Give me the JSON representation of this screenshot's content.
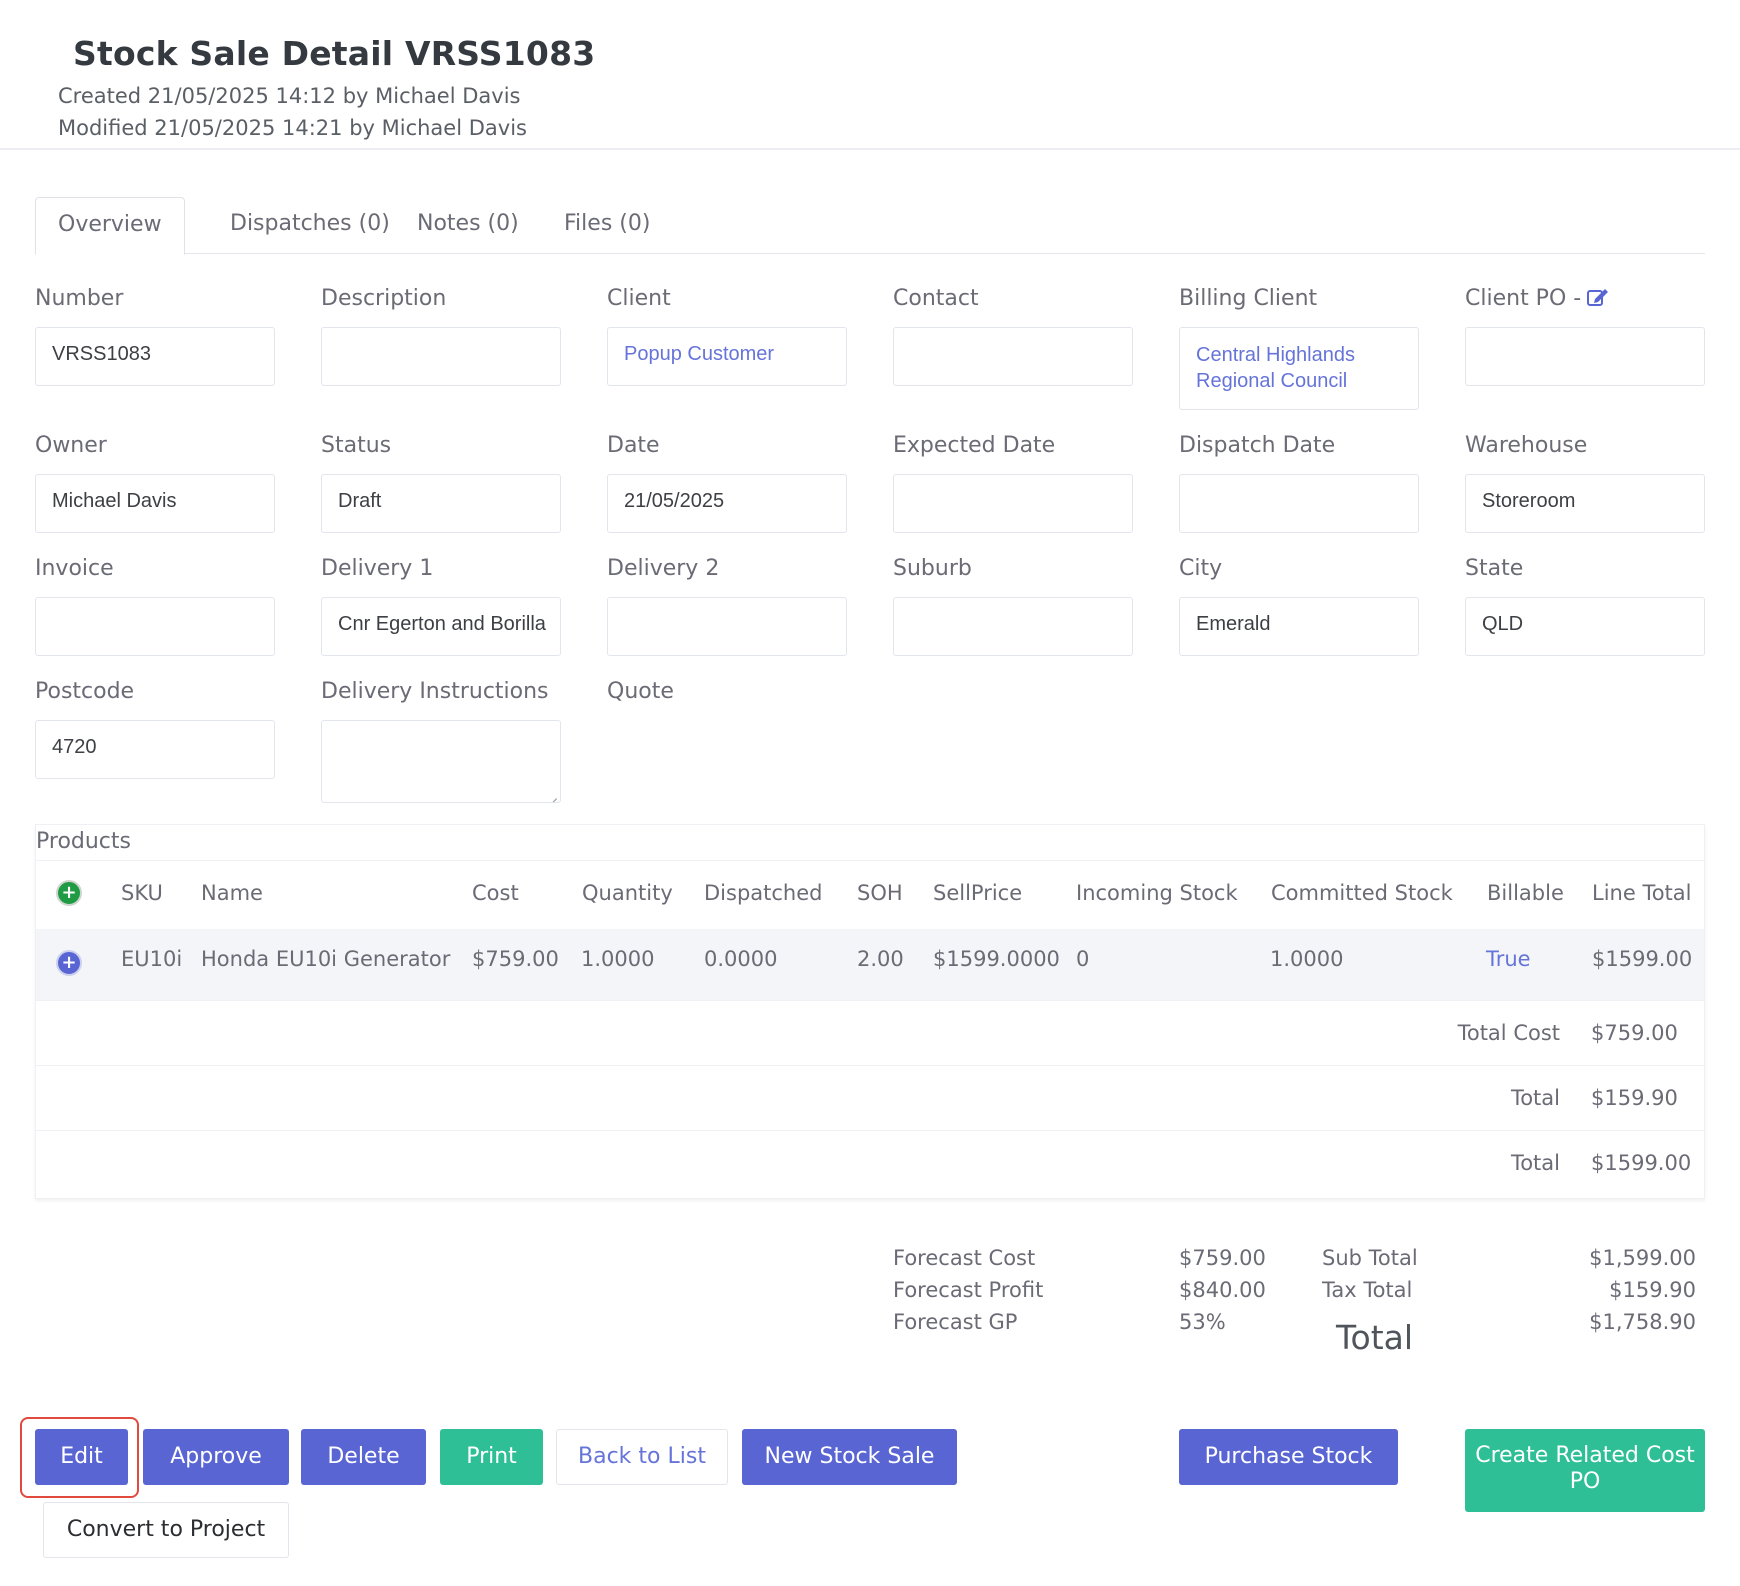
{
  "header": {
    "title": "Stock Sale Detail VRSS1083",
    "created": "Created 21/05/2025 14:12 by Michael Davis",
    "modified": "Modified 21/05/2025 14:21 by Michael Davis"
  },
  "tabs": [
    {
      "label": "Overview",
      "active": true
    },
    {
      "label": "Dispatches (0)",
      "active": false
    },
    {
      "label": "Notes (0)",
      "active": false
    },
    {
      "label": "Files (0)",
      "active": false
    }
  ],
  "fields": {
    "number": {
      "label": "Number",
      "value": "VRSS1083"
    },
    "description": {
      "label": "Description",
      "value": ""
    },
    "client": {
      "label": "Client",
      "value": "Popup Customer"
    },
    "contact": {
      "label": "Contact",
      "value": ""
    },
    "billing_client": {
      "label": "Billing Client",
      "value": "Central Highlands Regional Council"
    },
    "client_po": {
      "label": "Client PO -",
      "value": "",
      "icon": "edit-icon"
    },
    "owner": {
      "label": "Owner",
      "value": "Michael Davis"
    },
    "status": {
      "label": "Status",
      "value": "Draft"
    },
    "date": {
      "label": "Date",
      "value": "21/05/2025"
    },
    "expected_date": {
      "label": "Expected Date",
      "value": ""
    },
    "dispatch_date": {
      "label": "Dispatch Date",
      "value": ""
    },
    "warehouse": {
      "label": "Warehouse",
      "value": "Storeroom"
    },
    "invoice": {
      "label": "Invoice",
      "value": ""
    },
    "delivery1": {
      "label": "Delivery 1",
      "value": "Cnr Egerton and Borilla"
    },
    "delivery2": {
      "label": "Delivery 2",
      "value": ""
    },
    "suburb": {
      "label": "Suburb",
      "value": ""
    },
    "city": {
      "label": "City",
      "value": "Emerald"
    },
    "state": {
      "label": "State",
      "value": "QLD"
    },
    "postcode": {
      "label": "Postcode",
      "value": "4720"
    },
    "delivery_instructions": {
      "label": "Delivery Instructions",
      "value": ""
    },
    "quote": {
      "label": "Quote",
      "value": ""
    }
  },
  "products": {
    "title": "Products",
    "columns": [
      "SKU",
      "Name",
      "Cost",
      "Quantity",
      "Dispatched",
      "SOH",
      "SellPrice",
      "Incoming Stock",
      "Committed Stock",
      "Billable",
      "Line Total"
    ],
    "rows": [
      {
        "sku": "EU10i",
        "name": "Honda EU10i Generator",
        "cost": "$759.00",
        "quantity": "1.0000",
        "dispatched": "0.0000",
        "soh": "2.00",
        "sell_price": "$1599.0000",
        "incoming_stock": "0",
        "committed_stock": "1.0000",
        "billable": "True",
        "line_total": "$1599.00"
      }
    ],
    "summary": [
      {
        "label": "Total Cost",
        "value": "$759.00"
      },
      {
        "label": "Total",
        "value": "$159.90"
      },
      {
        "label": "Total",
        "value": "$1599.00"
      }
    ]
  },
  "forecast": {
    "cost_label": "Forecast Cost",
    "cost_value": "$759.00",
    "profit_label": "Forecast Profit",
    "profit_value": "$840.00",
    "gp_label": "Forecast GP",
    "gp_value": "53%"
  },
  "totals": {
    "sub_total_label": "Sub Total",
    "sub_total_value": "$1,599.00",
    "tax_total_label": "Tax Total",
    "tax_total_value": "$159.90",
    "grand_label": "Total",
    "grand_value": "$1,758.90"
  },
  "buttons": {
    "edit": "Edit",
    "approve": "Approve",
    "delete": "Delete",
    "print": "Print",
    "back_to_list": "Back to List",
    "new_stock_sale": "New Stock Sale",
    "purchase_stock": "Purchase Stock",
    "create_related_cost_po": "Create Related Cost PO",
    "convert_to_project": "Convert to Project"
  },
  "colors": {
    "primary": "#5a65d4",
    "teal": "#2fbf96",
    "link": "#6674d9",
    "highlight": "#e04a3f"
  }
}
